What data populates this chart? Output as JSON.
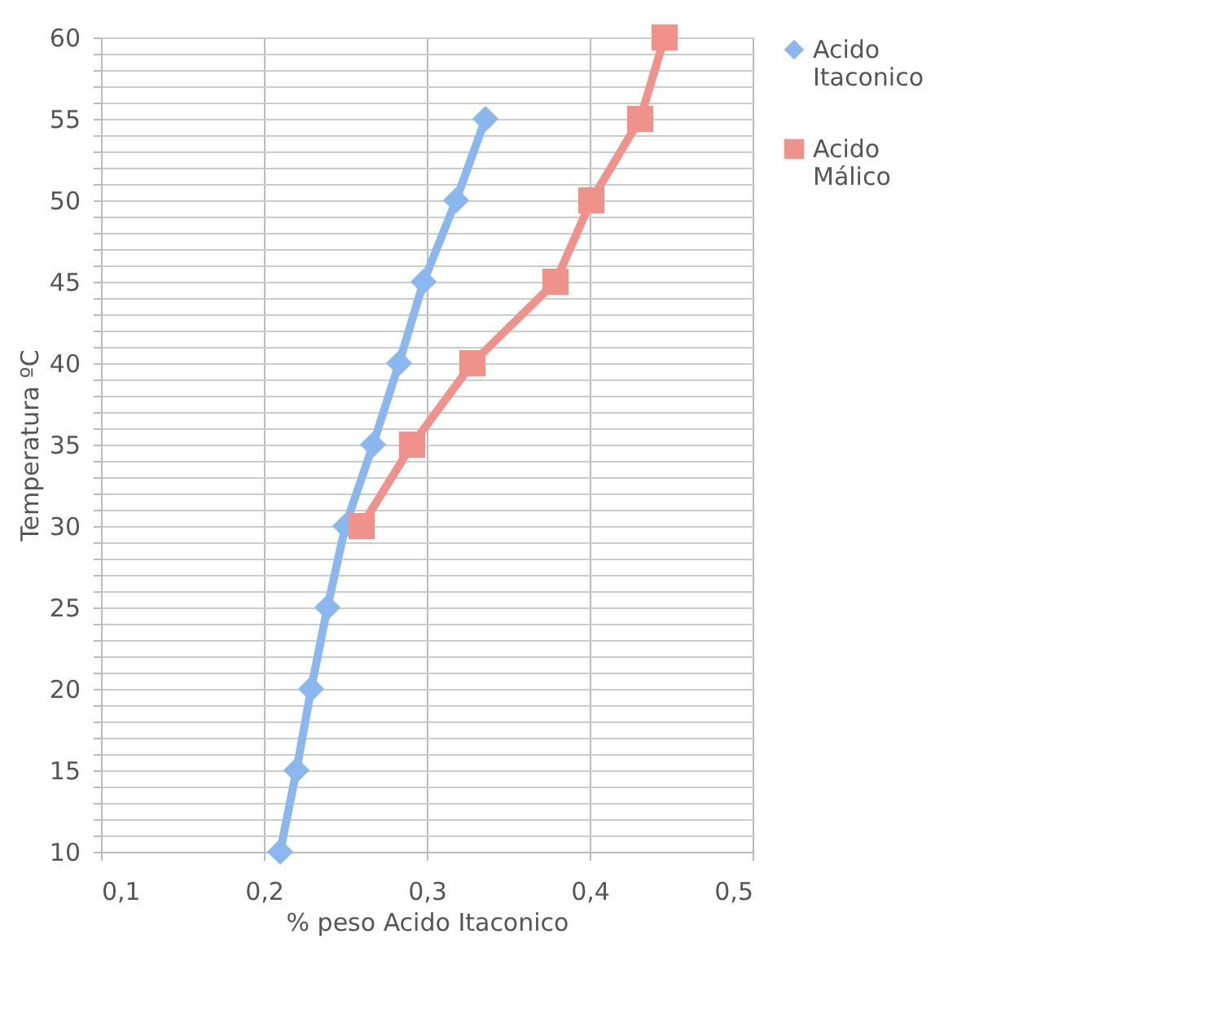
{
  "chart_data": {
    "type": "line",
    "xlabel": "% peso Acido Itaconico",
    "ylabel": "Temperatura ºC",
    "series": [
      {
        "name": "Acido Itaconico",
        "color": "#8ab8ee",
        "marker": "diamond",
        "x": [
          0.21,
          0.22,
          0.229,
          0.239,
          0.25,
          0.267,
          0.283,
          0.298,
          0.318,
          0.336
        ],
        "values": [
          10,
          15,
          20,
          25,
          30,
          35,
          40,
          45,
          50,
          55
        ]
      },
      {
        "name": "Acido Málico",
        "color": "#f0928c",
        "marker": "square",
        "x": [
          0.26,
          0.291,
          0.328,
          0.379,
          0.401,
          0.431,
          0.446
        ],
        "values": [
          30,
          35,
          40,
          45,
          50,
          55,
          60
        ]
      }
    ],
    "xlim": [
      0.1,
      0.5
    ],
    "xticks": [
      {
        "value": 0.1,
        "label": "0,1"
      },
      {
        "value": 0.2,
        "label": "0,2"
      },
      {
        "value": 0.3,
        "label": "0,3"
      },
      {
        "value": 0.4,
        "label": "0,4"
      },
      {
        "value": 0.5,
        "label": "0,5"
      }
    ],
    "ylim": [
      10,
      60
    ],
    "yticks": [
      10,
      {
        "value": 11,
        "label": null
      },
      {
        "value": 12,
        "label": null
      },
      {
        "value": 13,
        "label": null
      },
      {
        "value": 14,
        "label": null
      },
      15,
      {
        "value": 16,
        "label": null
      },
      {
        "value": 17,
        "label": null
      },
      {
        "value": 18,
        "label": null
      },
      {
        "value": 19,
        "label": null
      },
      20,
      {
        "value": 21,
        "label": null
      },
      {
        "value": 22,
        "label": null
      },
      {
        "value": 23,
        "label": null
      },
      {
        "value": 24,
        "label": null
      },
      25,
      {
        "value": 26,
        "label": null
      },
      {
        "value": 27,
        "label": null
      },
      {
        "value": 28,
        "label": null
      },
      {
        "value": 29,
        "label": null
      },
      30,
      {
        "value": 31,
        "label": null
      },
      {
        "value": 32,
        "label": null
      },
      {
        "value": 33,
        "label": null
      },
      {
        "value": 34,
        "label": null
      },
      35,
      {
        "value": 36,
        "label": null
      },
      {
        "value": 37,
        "label": null
      },
      {
        "value": 38,
        "label": null
      },
      {
        "value": 39,
        "label": null
      },
      40,
      {
        "value": 41,
        "label": null
      },
      {
        "value": 42,
        "label": null
      },
      {
        "value": 43,
        "label": null
      },
      {
        "value": 44,
        "label": null
      },
      45,
      {
        "value": 46,
        "label": null
      },
      {
        "value": 47,
        "label": null
      },
      {
        "value": 48,
        "label": null
      },
      {
        "value": 49,
        "label": null
      },
      50,
      {
        "value": 51,
        "label": null
      },
      {
        "value": 52,
        "label": null
      },
      {
        "value": 53,
        "label": null
      },
      {
        "value": 54,
        "label": null
      },
      55,
      {
        "value": 56,
        "label": null
      },
      {
        "value": 57,
        "label": null
      },
      {
        "value": 58,
        "label": null
      },
      {
        "value": 59,
        "label": null
      },
      60
    ],
    "grid": true,
    "legend": "right",
    "line_style": "solid"
  }
}
